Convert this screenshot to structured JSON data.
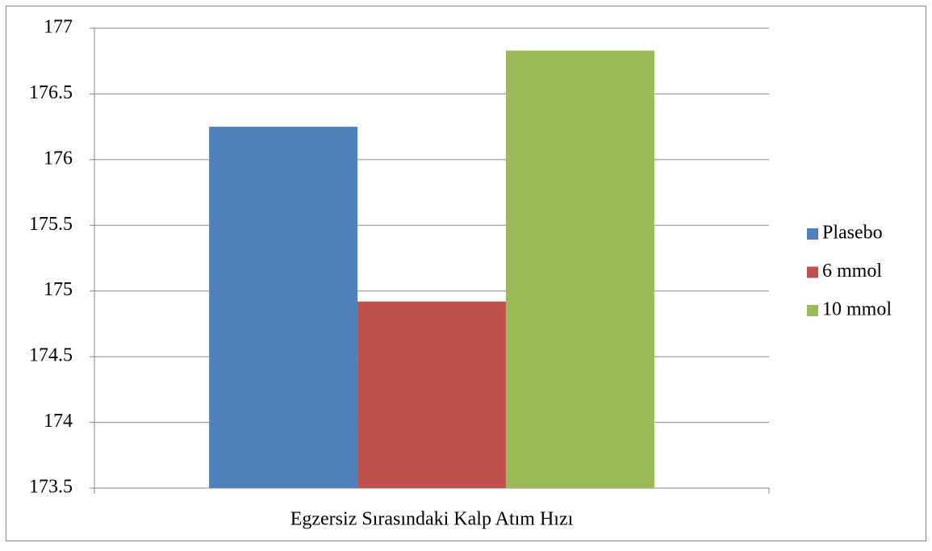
{
  "chart_data": {
    "type": "bar",
    "categories": [
      "Egzersiz Sırasındaki Kalp Atım Hızı"
    ],
    "series": [
      {
        "name": "Plasebo",
        "color": "#4f81bd",
        "values": [
          176.25
        ]
      },
      {
        "name": "6 mmol",
        "color": "#c0504d",
        "values": [
          174.92
        ]
      },
      {
        "name": "10 mmol",
        "color": "#9bbb59",
        "values": [
          176.83
        ]
      }
    ],
    "ylim": [
      173.5,
      177
    ],
    "yticks": [
      173.5,
      174,
      174.5,
      175,
      175.5,
      176,
      176.5,
      177
    ],
    "grid": true,
    "legend": "right"
  }
}
